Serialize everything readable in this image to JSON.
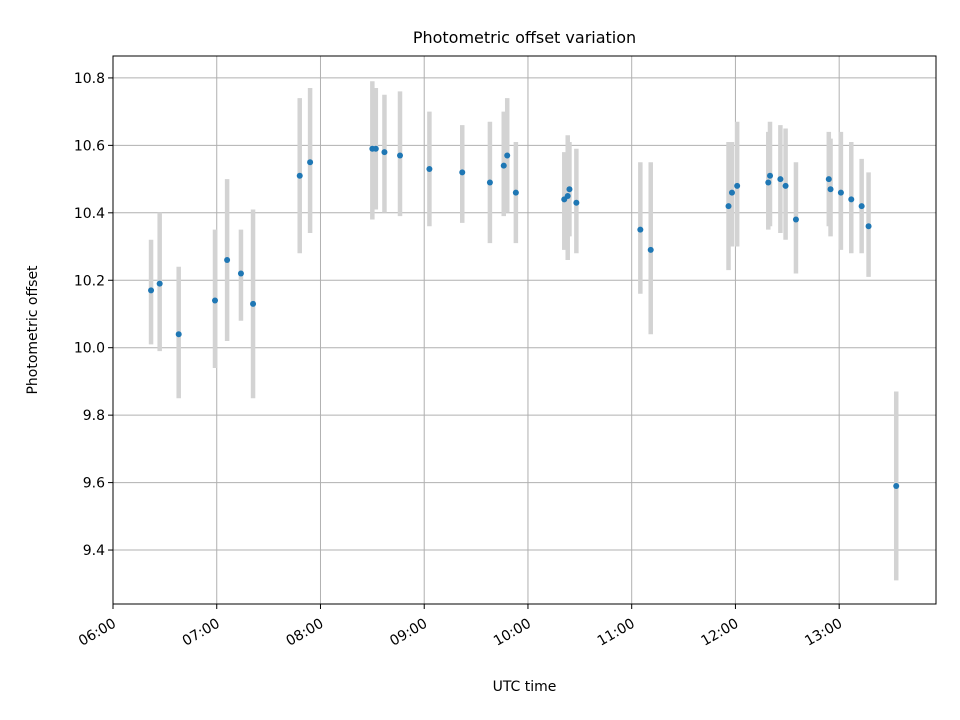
{
  "chart_data": {
    "type": "scatter",
    "title": "Photometric offset variation",
    "xlabel": "UTC time",
    "ylabel": "Photometric offset",
    "x_unit": "UTC time (HH:MM)",
    "xlim": [
      "06:00",
      "13:56"
    ],
    "ylim": [
      9.24,
      10.865
    ],
    "grid": true,
    "x_ticks": [
      "06:00",
      "07:00",
      "08:00",
      "09:00",
      "10:00",
      "11:00",
      "12:00",
      "13:00"
    ],
    "y_ticks": [
      9.4,
      9.6,
      9.8,
      10.0,
      10.2,
      10.4,
      10.6,
      10.8
    ],
    "y_tick_labels": [
      "9.4",
      "9.6",
      "9.8",
      "10.0",
      "10.2",
      "10.4",
      "10.6",
      "10.8"
    ],
    "points": [
      {
        "t": "06:22",
        "y": 10.17,
        "lo": 10.01,
        "hi": 10.32
      },
      {
        "t": "06:27",
        "y": 10.19,
        "lo": 9.99,
        "hi": 10.4
      },
      {
        "t": "06:38",
        "y": 10.04,
        "lo": 9.85,
        "hi": 10.24
      },
      {
        "t": "06:59",
        "y": 10.14,
        "lo": 9.94,
        "hi": 10.35
      },
      {
        "t": "07:06",
        "y": 10.26,
        "lo": 10.02,
        "hi": 10.5
      },
      {
        "t": "07:14",
        "y": 10.22,
        "lo": 10.08,
        "hi": 10.35
      },
      {
        "t": "07:21",
        "y": 10.13,
        "lo": 9.85,
        "hi": 10.41
      },
      {
        "t": "07:48",
        "y": 10.51,
        "lo": 10.28,
        "hi": 10.74
      },
      {
        "t": "07:54",
        "y": 10.55,
        "lo": 10.34,
        "hi": 10.77
      },
      {
        "t": "08:30",
        "y": 10.59,
        "lo": 10.38,
        "hi": 10.79
      },
      {
        "t": "08:32",
        "y": 10.59,
        "lo": 10.41,
        "hi": 10.77
      },
      {
        "t": "08:37",
        "y": 10.58,
        "lo": 10.4,
        "hi": 10.75
      },
      {
        "t": "08:46",
        "y": 10.57,
        "lo": 10.39,
        "hi": 10.76
      },
      {
        "t": "09:03",
        "y": 10.53,
        "lo": 10.36,
        "hi": 10.7
      },
      {
        "t": "09:22",
        "y": 10.52,
        "lo": 10.37,
        "hi": 10.66
      },
      {
        "t": "09:38",
        "y": 10.49,
        "lo": 10.31,
        "hi": 10.67
      },
      {
        "t": "09:46",
        "y": 10.54,
        "lo": 10.39,
        "hi": 10.7
      },
      {
        "t": "09:48",
        "y": 10.57,
        "lo": 10.4,
        "hi": 10.74
      },
      {
        "t": "09:53",
        "y": 10.46,
        "lo": 10.31,
        "hi": 10.61
      },
      {
        "t": "10:21",
        "y": 10.44,
        "lo": 10.29,
        "hi": 10.58
      },
      {
        "t": "10:23",
        "y": 10.45,
        "lo": 10.26,
        "hi": 10.63
      },
      {
        "t": "10:24",
        "y": 10.47,
        "lo": 10.33,
        "hi": 10.61
      },
      {
        "t": "10:28",
        "y": 10.43,
        "lo": 10.28,
        "hi": 10.59
      },
      {
        "t": "11:05",
        "y": 10.35,
        "lo": 10.16,
        "hi": 10.55
      },
      {
        "t": "11:11",
        "y": 10.29,
        "lo": 10.04,
        "hi": 10.55
      },
      {
        "t": "11:56",
        "y": 10.42,
        "lo": 10.23,
        "hi": 10.61
      },
      {
        "t": "11:58",
        "y": 10.46,
        "lo": 10.3,
        "hi": 10.61
      },
      {
        "t": "12:01",
        "y": 10.48,
        "lo": 10.3,
        "hi": 10.67
      },
      {
        "t": "12:19",
        "y": 10.49,
        "lo": 10.35,
        "hi": 10.64
      },
      {
        "t": "12:20",
        "y": 10.51,
        "lo": 10.36,
        "hi": 10.67
      },
      {
        "t": "12:26",
        "y": 10.5,
        "lo": 10.34,
        "hi": 10.66
      },
      {
        "t": "12:29",
        "y": 10.48,
        "lo": 10.32,
        "hi": 10.65
      },
      {
        "t": "12:35",
        "y": 10.38,
        "lo": 10.22,
        "hi": 10.55
      },
      {
        "t": "12:54",
        "y": 10.5,
        "lo": 10.36,
        "hi": 10.64
      },
      {
        "t": "12:55",
        "y": 10.47,
        "lo": 10.33,
        "hi": 10.62
      },
      {
        "t": "13:01",
        "y": 10.46,
        "lo": 10.29,
        "hi": 10.64
      },
      {
        "t": "13:07",
        "y": 10.44,
        "lo": 10.28,
        "hi": 10.61
      },
      {
        "t": "13:13",
        "y": 10.42,
        "lo": 10.28,
        "hi": 10.56
      },
      {
        "t": "13:17",
        "y": 10.36,
        "lo": 10.21,
        "hi": 10.52
      },
      {
        "t": "13:33",
        "y": 9.59,
        "lo": 9.31,
        "hi": 9.87
      }
    ],
    "colors": {
      "marker": "#1f77b4",
      "errorbar": "#d3d3d3",
      "grid": "#b0b0b0",
      "axis": "#000000"
    }
  }
}
